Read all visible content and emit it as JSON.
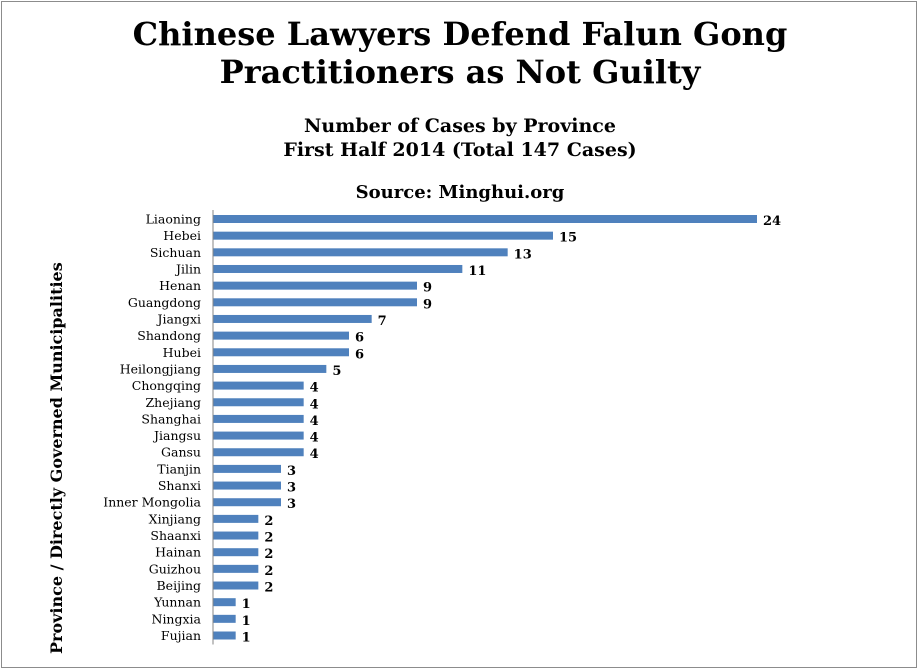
{
  "chart_data": {
    "type": "bar",
    "orientation": "horizontal",
    "title": "Chinese Lawyers Defend Falun Gong Practitioners as Not Guilty",
    "title_lines": [
      "Chinese Lawyers Defend Falun Gong",
      "Practitioners as Not Guilty"
    ],
    "subtitle_lines": [
      "Number of Cases by Province",
      "First Half 2014 (Total 147 Cases)"
    ],
    "source": "Source: Minghui.org",
    "ylabel": "Province / Directly Governed Municipalities",
    "xlabel": "",
    "xlim": [
      0,
      24
    ],
    "grid": false,
    "legend": "none",
    "bar_color": "#4f81bd",
    "categories": [
      "Liaoning",
      "Hebei",
      "Sichuan",
      "Jilin",
      "Henan",
      "Guangdong",
      "Jiangxi",
      "Shandong",
      "Hubei",
      "Heilongjiang",
      "Chongqing",
      "Zhejiang",
      "Shanghai",
      "Jiangsu",
      "Gansu",
      "Tianjin",
      "Shanxi",
      "Inner Mongolia",
      "Xinjiang",
      "Shaanxi",
      "Hainan",
      "Guizhou",
      "Beijing",
      "Yunnan",
      "Ningxia",
      "Fujian"
    ],
    "values": [
      24,
      15,
      13,
      11,
      9,
      9,
      7,
      6,
      6,
      5,
      4,
      4,
      4,
      4,
      4,
      3,
      3,
      3,
      2,
      2,
      2,
      2,
      2,
      1,
      1,
      1
    ]
  }
}
